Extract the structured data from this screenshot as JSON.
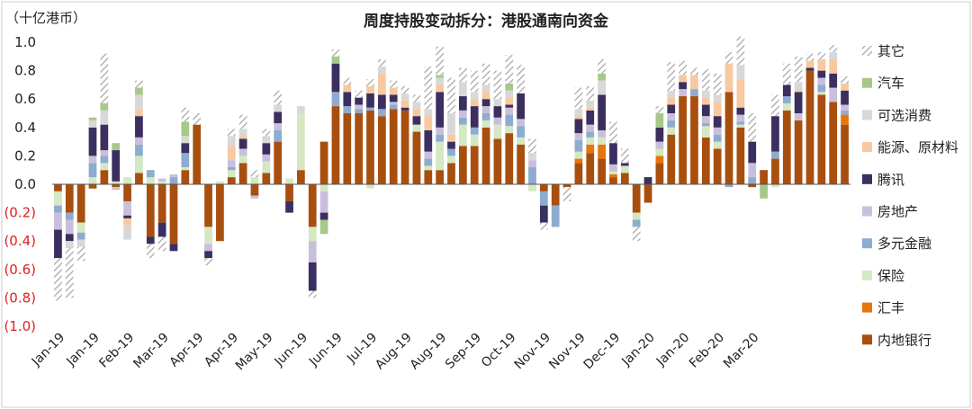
{
  "chart_data": {
    "type": "bar",
    "stacked": true,
    "title": "周度持股变动拆分：港股通南向资金",
    "unit_label": "（十亿港币）",
    "ylim": [
      -1.0,
      1.0
    ],
    "y_ticks": [
      {
        "value": 1.0,
        "label": "1.0"
      },
      {
        "value": 0.8,
        "label": "0.8"
      },
      {
        "value": 0.6,
        "label": "0.6"
      },
      {
        "value": 0.4,
        "label": "0.4"
      },
      {
        "value": 0.2,
        "label": "0.2"
      },
      {
        "value": 0.0,
        "label": "0.0"
      },
      {
        "value": -0.2,
        "label": "(0.2)"
      },
      {
        "value": -0.4,
        "label": "(0.4)"
      },
      {
        "value": -0.6,
        "label": "(0.6)"
      },
      {
        "value": -0.8,
        "label": "(0.8)"
      },
      {
        "value": -1.0,
        "label": "(1.0)"
      }
    ],
    "x_tick_labels": [
      "Jan-19",
      "Jan-19",
      "Feb-19",
      "Mar-19",
      "Apr-19",
      "Apr-19",
      "May-19",
      "Jun-19",
      "Jun-19",
      "Jul-19",
      "Aug-19",
      "Aug-19",
      "Sep-19",
      "Oct-19",
      "Nov-19",
      "Nov-19",
      "Dec-19",
      "Jan-20",
      "Jan-20",
      "Feb-20",
      "Mar-20"
    ],
    "x_tick_every": 3,
    "legend_position": "right",
    "grid": false,
    "colors": {
      "内地银行": "#a84f0f",
      "汇丰": "#e8740c",
      "保险": "#d4e8c2",
      "多元金融": "#8eabd0",
      "房地产": "#c9bfdc",
      "腾讯": "#3b2f5f",
      "能源、原材料": "#f8c8a0",
      "可选消费": "#d8d8d8",
      "汽车": "#a6c98a",
      "其它": "hatch",
      "negative_tick": "#e02020"
    },
    "legend": [
      "其它",
      "汽车",
      "可选消费",
      "能源、原材料",
      "腾讯",
      "房地产",
      "多元金融",
      "保险",
      "汇丰",
      "内地银行"
    ],
    "stack_order": [
      "内地银行",
      "汇丰",
      "保险",
      "多元金融",
      "房地产",
      "腾讯",
      "能源、原材料",
      "可选消费",
      "汽车",
      "其它"
    ],
    "series": [
      {
        "name": "内地银行",
        "values": [
          -0.05,
          -0.2,
          -0.27,
          -0.03,
          0.1,
          -0.02,
          -0.12,
          0.08,
          -0.37,
          -0.27,
          -0.42,
          0.1,
          0.42,
          -0.3,
          -0.4,
          0.05,
          0.15,
          -0.08,
          0.08,
          0.3,
          -0.12,
          0.1,
          -0.3,
          0.3,
          0.55,
          0.5,
          0.5,
          0.52,
          0.48,
          0.53,
          0.52,
          0.37,
          0.1,
          0.1,
          0.15,
          0.27,
          0.27,
          0.4,
          0.32,
          0.36,
          0.28,
          0,
          -0.05,
          -0.15,
          -0.02,
          0.15,
          0.22,
          0.18,
          0.05,
          0.08,
          -0.2,
          -0.13,
          0.15,
          0.35,
          0.62,
          0.62,
          0.33,
          0.25,
          0.65,
          0.4,
          -0.02,
          0.1,
          0.18,
          0.52,
          0.45,
          0.8,
          0.63,
          0.58,
          0.42
        ]
      },
      {
        "name": "汇丰",
        "values": [
          0,
          0,
          0,
          0,
          0,
          0,
          0,
          0,
          0,
          0,
          0,
          0,
          0,
          0,
          0,
          0,
          0,
          0,
          0,
          0,
          0,
          0,
          0,
          0,
          0,
          0,
          0,
          0,
          0,
          0,
          0,
          0,
          0,
          0,
          0,
          0,
          0,
          0,
          0,
          0,
          0,
          0,
          0,
          0,
          0,
          0.03,
          0.06,
          0.1,
          0.02,
          0,
          0,
          0,
          0.05,
          0,
          0,
          0,
          0,
          0,
          0,
          0,
          0,
          0,
          0,
          0,
          0,
          0,
          0,
          0,
          0.07
        ]
      },
      {
        "name": "保险",
        "values": [
          -0.1,
          0,
          -0.07,
          0.05,
          0.05,
          0.02,
          0.05,
          0.12,
          0.05,
          0.02,
          0,
          0.02,
          0,
          -0.12,
          0.02,
          0.05,
          0.05,
          0.05,
          0.08,
          0,
          0.04,
          0.4,
          -0.1,
          -0.05,
          0,
          0,
          0,
          -0.03,
          0,
          0,
          0,
          0.05,
          0.03,
          0.2,
          0.05,
          0.15,
          0.08,
          0.05,
          0.1,
          0.05,
          0.05,
          -0.05,
          0,
          0,
          0,
          0.05,
          0.05,
          0.05,
          0.02,
          0.05,
          -0.05,
          0,
          0.05,
          0.05,
          0,
          0,
          0.08,
          0.05,
          0,
          0.02,
          0,
          0,
          -0.02,
          0.05,
          0,
          0,
          0.02,
          0,
          0
        ]
      },
      {
        "name": "多元金融",
        "values": [
          -0.05,
          -0.05,
          -0.05,
          0.1,
          0.05,
          0,
          0,
          0.08,
          0.05,
          0,
          0.05,
          0.1,
          0,
          0,
          0,
          0.02,
          0,
          0,
          0,
          0.08,
          0,
          0,
          0,
          0,
          0.1,
          0.05,
          0.03,
          0.02,
          0.05,
          0.03,
          0,
          0,
          0.05,
          0.05,
          0.05,
          0.05,
          0.05,
          0.05,
          0,
          0.08,
          0.08,
          0.12,
          -0.1,
          -0.15,
          0,
          0.08,
          0.04,
          0,
          0,
          0,
          -0.05,
          0,
          0,
          0.05,
          0,
          0.05,
          0.02,
          0.05,
          -0.02,
          0.02,
          0.05,
          0,
          0.05,
          0.05,
          0,
          0,
          0.05,
          0,
          0.03
        ]
      },
      {
        "name": "房地产",
        "values": [
          -0.12,
          -0.1,
          0,
          0.05,
          0.04,
          -0.02,
          -0.1,
          0.05,
          0,
          0.02,
          0.02,
          0,
          0,
          -0.05,
          0,
          0.05,
          0.05,
          -0.02,
          0.05,
          0.05,
          0,
          0,
          -0.15,
          -0.15,
          0,
          0,
          0.03,
          0,
          0,
          0.02,
          0,
          0,
          0.05,
          0.05,
          0,
          0.05,
          0,
          0.05,
          0.05,
          0.05,
          0.05,
          0.05,
          0,
          0,
          0,
          0.05,
          0.05,
          0.05,
          0.05,
          0,
          0,
          0,
          0.05,
          0.05,
          0.05,
          0,
          0.05,
          0.05,
          0,
          0.05,
          0.1,
          0,
          0,
          0,
          0.05,
          0,
          0.05,
          0.1,
          0.04
        ]
      },
      {
        "name": "腾讯",
        "values": [
          -0.2,
          -0.05,
          0,
          0.2,
          0.18,
          0.22,
          -0.02,
          0.15,
          -0.05,
          -0.1,
          -0.05,
          0.07,
          0,
          -0.05,
          0,
          0,
          0.07,
          0,
          0.08,
          0.08,
          -0.08,
          0,
          -0.2,
          -0.05,
          0.2,
          0.1,
          0.05,
          0.1,
          0.1,
          0.05,
          0.02,
          0.06,
          0.15,
          0.25,
          0.05,
          0.1,
          0.15,
          0.05,
          0.08,
          0.02,
          0.18,
          0,
          -0.12,
          0,
          0,
          0.1,
          0.1,
          0.25,
          0.15,
          0.02,
          0,
          0.05,
          0.1,
          0.06,
          0.05,
          0,
          0.08,
          0.08,
          0,
          0.05,
          0.15,
          0,
          0.25,
          0.08,
          0.15,
          0.02,
          0.05,
          0.1,
          0.1
        ]
      },
      {
        "name": "能源、原材料",
        "values": [
          0,
          0,
          0,
          0,
          0,
          0,
          -0.05,
          0.05,
          0,
          0,
          0,
          0,
          0,
          0,
          0,
          0.1,
          0.02,
          0,
          0,
          0,
          0,
          0,
          0,
          0,
          0,
          0.05,
          0,
          0.05,
          0.15,
          0.05,
          0.05,
          0.05,
          0.1,
          0.05,
          0.05,
          0,
          0.05,
          0.05,
          0,
          0.05,
          0,
          0,
          0,
          0,
          0,
          0.02,
          0.02,
          0,
          0,
          0,
          0,
          0,
          0,
          0.05,
          0.05,
          0.1,
          0.05,
          0.1,
          0.2,
          0.2,
          0,
          0,
          0,
          0,
          0.02,
          0.05,
          0.08,
          0.1,
          0.05
        ]
      },
      {
        "name": "可选消费",
        "values": [
          0,
          -0.05,
          -0.05,
          0.05,
          0.1,
          0,
          -0.1,
          0.1,
          0,
          0,
          0,
          0.05,
          0,
          0,
          0,
          0.07,
          0.05,
          0,
          0.05,
          0.05,
          0,
          0.05,
          0,
          0,
          0,
          0,
          0,
          0,
          0.05,
          0,
          0.05,
          0.05,
          0.05,
          0.05,
          0.15,
          0.1,
          0.05,
          0.05,
          0.05,
          0.05,
          0,
          0.05,
          0,
          0,
          0,
          0.05,
          0.05,
          0.1,
          0,
          0,
          0,
          0,
          0,
          0.05,
          0,
          0,
          0.05,
          0.05,
          0,
          0.1,
          0,
          0,
          0,
          0,
          0.05,
          0,
          0,
          0.05,
          0
        ]
      },
      {
        "name": "汽车",
        "values": [
          0,
          0,
          0,
          0.02,
          0.05,
          0.05,
          0,
          0.05,
          0,
          0,
          0,
          0.1,
          0,
          0,
          0,
          0,
          0,
          0,
          0,
          0,
          0,
          0,
          0,
          -0.1,
          0.05,
          0,
          0,
          0,
          0,
          0,
          0,
          0,
          0,
          0.02,
          0,
          0,
          0,
          0,
          0,
          0.05,
          0,
          0,
          0,
          0,
          0,
          0,
          0,
          0.05,
          0,
          0,
          0,
          0,
          0.1,
          0,
          0,
          0,
          0,
          0,
          0,
          0,
          0,
          -0.1,
          0,
          0,
          0,
          0,
          0,
          0,
          0
        ]
      },
      {
        "name": "其它",
        "values": [
          -0.3,
          -0.35,
          -0.1,
          0,
          0.35,
          0,
          0,
          0.05,
          -0.1,
          -0.1,
          0,
          0.1,
          0.08,
          -0.05,
          0,
          0.05,
          0.1,
          0.05,
          0.05,
          0.1,
          0,
          0,
          -0.05,
          0,
          0.05,
          0.05,
          0.05,
          0.05,
          0.05,
          0.05,
          0.05,
          0.05,
          0.3,
          0.2,
          0.25,
          0.1,
          0.15,
          0.15,
          0.2,
          0.2,
          0.2,
          0.1,
          -0.05,
          0,
          -0.1,
          0.15,
          0.1,
          0.1,
          0.15,
          0.1,
          -0.1,
          0,
          0.05,
          0.2,
          0.1,
          0.05,
          0.15,
          0.15,
          0.08,
          0.2,
          0.2,
          0,
          0.15,
          0.15,
          0.18,
          0.05,
          0.05,
          0.05,
          0.05
        ]
      }
    ]
  }
}
